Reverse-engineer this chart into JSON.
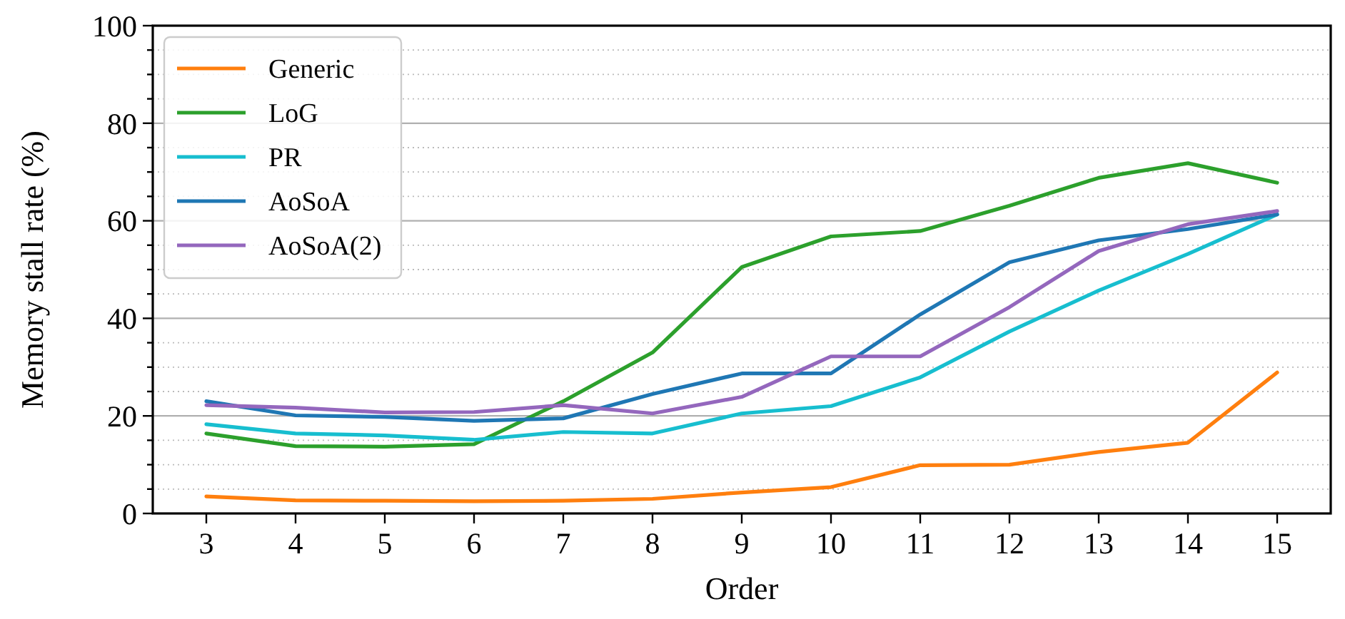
{
  "chart_data": {
    "type": "line",
    "xlabel": "Order",
    "ylabel": "Memory stall rate (%)",
    "x": [
      3,
      4,
      5,
      6,
      7,
      8,
      9,
      10,
      11,
      12,
      13,
      14,
      15
    ],
    "xlim": [
      2.4,
      15.6
    ],
    "xticks": [
      3,
      4,
      5,
      6,
      7,
      8,
      9,
      10,
      11,
      12,
      13,
      14,
      15
    ],
    "ylim": [
      0,
      100
    ],
    "yticks": [
      0,
      {
        "value": 5,
        "label": null
      },
      {
        "value": 10,
        "label": null
      },
      {
        "value": 15,
        "label": null
      },
      20,
      {
        "value": 25,
        "label": null
      },
      {
        "value": 30,
        "label": null
      },
      {
        "value": 35,
        "label": null
      },
      40,
      {
        "value": 45,
        "label": null
      },
      {
        "value": 50,
        "label": null
      },
      {
        "value": 55,
        "label": null
      },
      60,
      {
        "value": 65,
        "label": null
      },
      {
        "value": 70,
        "label": null
      },
      {
        "value": 75,
        "label": null
      },
      80,
      {
        "value": 85,
        "label": null
      },
      {
        "value": 90,
        "label": null
      },
      {
        "value": 95,
        "label": null
      },
      100
    ],
    "grid": "y",
    "legend": "top left",
    "line_style": "solid",
    "marker": "none",
    "series": [
      {
        "name": "Generic",
        "color": "#ff7f0e",
        "values": [
          3.5,
          2.7,
          2.6,
          2.5,
          2.6,
          3.0,
          4.3,
          5.4,
          9.9,
          10.0,
          12.6,
          14.5,
          28.9
        ]
      },
      {
        "name": "LoG",
        "color": "#2ca02c",
        "values": [
          16.4,
          13.8,
          13.7,
          14.2,
          23,
          33,
          50.5,
          56.8,
          57.9,
          63.1,
          68.8,
          71.8,
          67.8
        ]
      },
      {
        "name": "PR",
        "color": "#17becf",
        "values": [
          18.3,
          16.4,
          16,
          15.1,
          16.7,
          16.4,
          20.5,
          22,
          27.9,
          37.3,
          45.7,
          53.2,
          61.3
        ]
      },
      {
        "name": "AoSoA",
        "color": "#1f77b4",
        "values": [
          23,
          20.1,
          19.8,
          19,
          19.5,
          24.5,
          28.7,
          28.7,
          40.8,
          51.5,
          56,
          58.3,
          61.3
        ]
      },
      {
        "name": "AoSoA(2)",
        "color": "#9467bd",
        "values": [
          22.2,
          21.7,
          20.7,
          20.8,
          22.2,
          20.5,
          23.9,
          32.2,
          32.2,
          42.3,
          53.8,
          59.3,
          62
        ]
      }
    ]
  }
}
